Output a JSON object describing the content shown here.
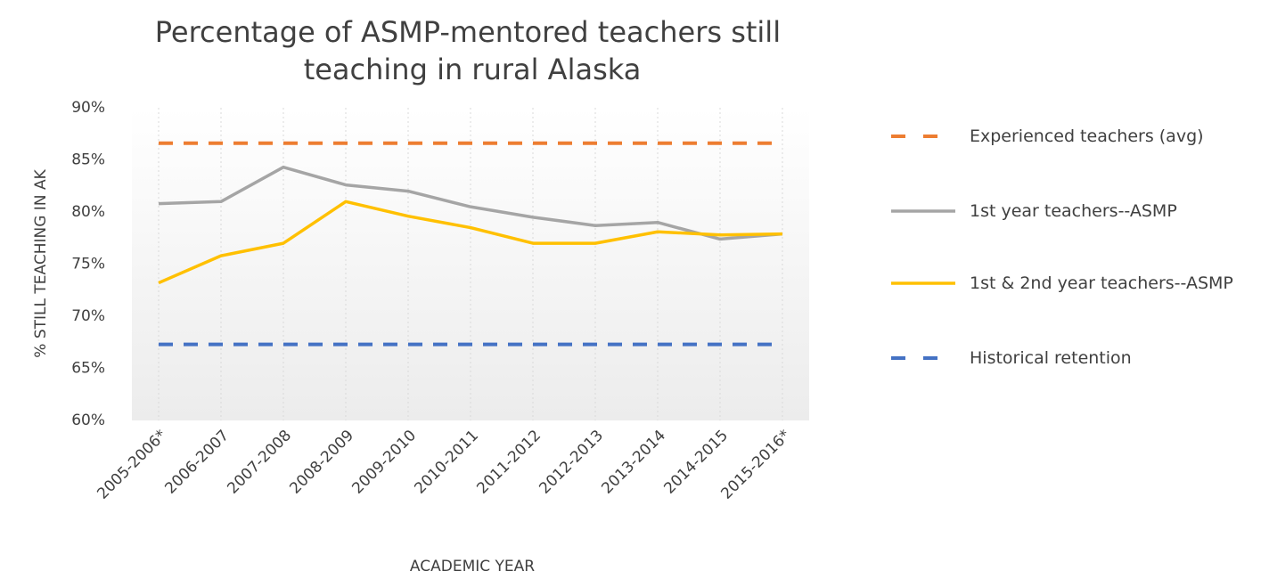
{
  "chart_data": {
    "type": "line",
    "title": "Percentage of ASMP-mentored teachers still teaching in rural Alaska",
    "x_label": "ACADEMIC YEAR",
    "y_label": "% STILL TEACHING IN AK",
    "categories": [
      "2005-2006*",
      "2006-2007",
      "2007-2008",
      "2008-2009",
      "2009-2010",
      "2010-2011",
      "2011-2012",
      "2012-2013",
      "2013-2014",
      "2014-2015",
      "2015-2016*"
    ],
    "series": [
      {
        "name": "Experienced teachers (avg)",
        "color": "#ed7d31",
        "style": "dashed",
        "values": [
          86.6,
          86.6,
          86.6,
          86.6,
          86.6,
          86.6,
          86.6,
          86.6,
          86.6,
          86.6,
          86.6
        ]
      },
      {
        "name": "1st year teachers--ASMP",
        "color": "#a5a5a5",
        "style": "solid",
        "values": [
          80.8,
          81.0,
          84.3,
          82.6,
          82.0,
          80.5,
          79.5,
          78.7,
          79.0,
          77.4,
          77.9
        ]
      },
      {
        "name": "1st & 2nd year teachers--ASMP",
        "color": "#ffc000",
        "style": "solid",
        "values": [
          73.2,
          75.8,
          77.0,
          81.0,
          79.6,
          78.5,
          77.0,
          77.0,
          78.1,
          77.8,
          77.9
        ]
      },
      {
        "name": "Historical retention",
        "color": "#4472c4",
        "style": "dashed",
        "values": [
          67.3,
          67.3,
          67.3,
          67.3,
          67.3,
          67.3,
          67.3,
          67.3,
          67.3,
          67.3,
          67.3
        ]
      }
    ],
    "ylim": [
      60,
      90
    ],
    "yticks": [
      {
        "value": 60,
        "label": "60%"
      },
      {
        "value": 65,
        "label": "65%"
      },
      {
        "value": 70,
        "label": "70%"
      },
      {
        "value": 75,
        "label": "75%"
      },
      {
        "value": 80,
        "label": "80%"
      },
      {
        "value": 85,
        "label": "85%"
      },
      {
        "value": 90,
        "label": "90%"
      }
    ],
    "grid": "vertical",
    "legend": "right"
  }
}
